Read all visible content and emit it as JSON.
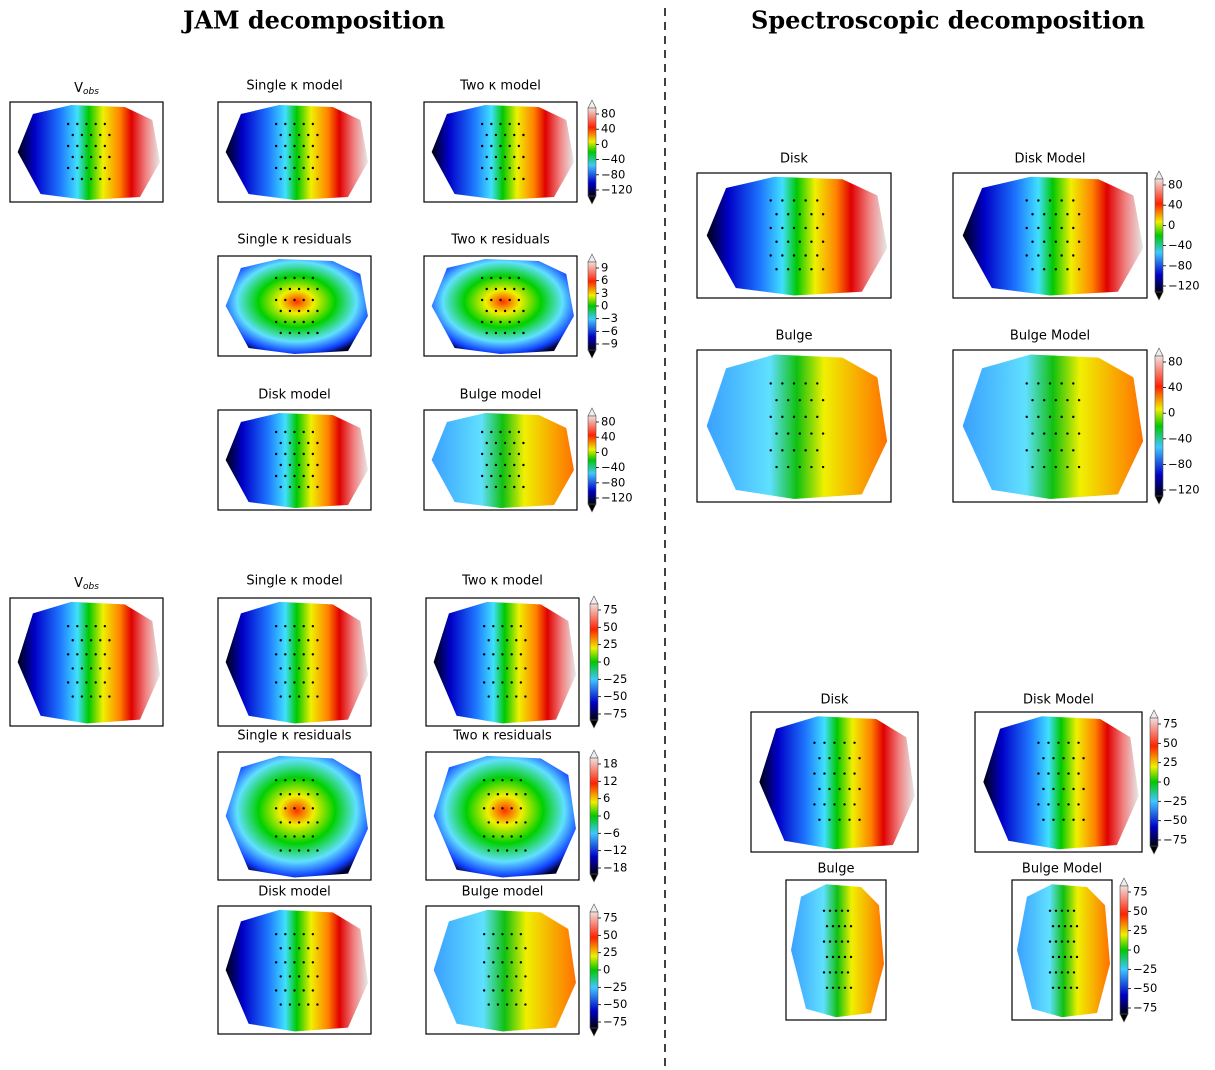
{
  "headers": {
    "left": "JAM decomposition",
    "right": "Spectroscopic decomposition"
  },
  "panels": [
    {
      "title": {
        "base": "V",
        "sub": "obs"
      }
    },
    {
      "title": "Single κ model"
    },
    {
      "title": "Two κ model"
    },
    {
      "title": "Single κ residuals"
    },
    {
      "title": "Two κ residuals"
    },
    {
      "title": "Disk model"
    },
    {
      "title": "Bulge model"
    },
    {
      "title": {
        "base": "V",
        "sub": "obs"
      }
    },
    {
      "title": "Single κ model"
    },
    {
      "title": "Two κ model"
    },
    {
      "title": "Single κ residuals"
    },
    {
      "title": "Two κ residuals"
    },
    {
      "title": "Disk model"
    },
    {
      "title": "Bulge model"
    },
    {
      "title": "Disk"
    },
    {
      "title": "Disk Model"
    },
    {
      "title": "Bulge"
    },
    {
      "title": "Bulge Model"
    },
    {
      "title": "Disk"
    },
    {
      "title": "Disk Model"
    },
    {
      "title": "Bulge"
    },
    {
      "title": "Bulge Model"
    }
  ],
  "colorbars": [
    {
      "ticks": [
        "80",
        "40",
        "0",
        "−40",
        "−80",
        "−120"
      ]
    },
    {
      "ticks": [
        "9",
        "6",
        "3",
        "0",
        "−3",
        "−6",
        "−9"
      ]
    },
    {
      "ticks": [
        "80",
        "40",
        "0",
        "−40",
        "−80",
        "−120"
      ]
    },
    {
      "ticks": [
        "75",
        "50",
        "25",
        "0",
        "−25",
        "−50",
        "−75"
      ]
    },
    {
      "ticks": [
        "18",
        "12",
        "6",
        "0",
        "−6",
        "−12",
        "−18"
      ]
    },
    {
      "ticks": [
        "75",
        "50",
        "25",
        "0",
        "−25",
        "−50",
        "−75"
      ]
    },
    {
      "ticks": [
        "80",
        "40",
        "0",
        "−40",
        "−80",
        "−120"
      ]
    },
    {
      "ticks": [
        "80",
        "40",
        "0",
        "−40",
        "−80",
        "−120"
      ]
    },
    {
      "ticks": [
        "75",
        "50",
        "25",
        "0",
        "−25",
        "−50",
        "−75"
      ]
    },
    {
      "ticks": [
        "75",
        "50",
        "25",
        "0",
        "−25",
        "−50",
        "−75"
      ]
    }
  ]
}
